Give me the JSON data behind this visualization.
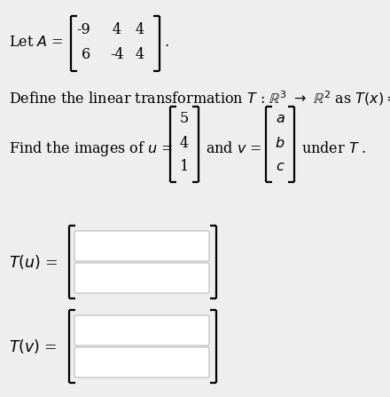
{
  "bg_color": "#eeeeee",
  "text_color": "#000000",
  "matrix_A_r1c1": "-9",
  "matrix_A_r1c2": "4",
  "matrix_A_r1c3": "4",
  "matrix_A_r2c1": "6",
  "matrix_A_r2c2": "-4",
  "matrix_A_r2c3": "4",
  "u_vec": [
    "5",
    "4",
    "1"
  ],
  "v_vec": [
    "a",
    "b",
    "c"
  ],
  "box_color": "#ffffff",
  "box_border_color": "#bbbbbb",
  "fs_main": 11.5,
  "lw_bracket": 1.6
}
